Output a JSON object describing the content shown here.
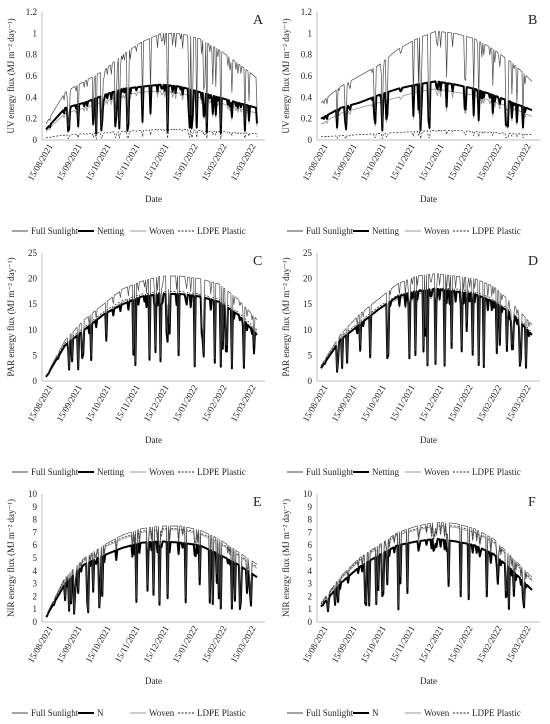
{
  "series_styles": [
    {
      "color": "#4a4a4a",
      "dash": "",
      "width": 0.7
    },
    {
      "color": "#000000",
      "dash": "",
      "width": 2.0
    },
    {
      "color": "#9a9a9a",
      "dash": "",
      "width": 0.9
    },
    {
      "color": "#222222",
      "dash": "2,1.5",
      "width": 0.7
    }
  ],
  "chart_data": [
    {
      "panel": "A",
      "type": "line",
      "ylabel": "UV energy flux (MJ m⁻² day⁻¹)",
      "xlabel": "Date",
      "x_ticks": [
        "15/08/2021",
        "15/09/2021",
        "15/10/2021",
        "15/11/2021",
        "15/12/2021",
        "15/01/2022",
        "15/02/2022",
        "15/03/2022"
      ],
      "ylim": [
        0,
        1.2
      ],
      "y_ticks": [
        "0",
        "0.2",
        "0.4",
        "0.6",
        "0.8",
        "1",
        "1.2"
      ],
      "legend": [
        "Full Sunlight",
        "Netting",
        "Woven",
        "LDPE Plastic"
      ],
      "series": [
        {
          "name": "Full Sunlight",
          "values": [
            0.15,
            0.45,
            0.55,
            0.65,
            0.8,
            0.92,
            1.0,
            1.0,
            0.95,
            0.85,
            0.72,
            0.58
          ]
        },
        {
          "name": "Netting",
          "values": [
            0.1,
            0.3,
            0.35,
            0.42,
            0.48,
            0.5,
            0.52,
            0.5,
            0.45,
            0.4,
            0.35,
            0.3
          ]
        },
        {
          "name": "Woven",
          "values": [
            0.08,
            0.25,
            0.3,
            0.36,
            0.42,
            0.45,
            0.46,
            0.44,
            0.4,
            0.35,
            0.3,
            0.25
          ]
        },
        {
          "name": "LDPE Plastic",
          "values": [
            0.02,
            0.05,
            0.06,
            0.07,
            0.08,
            0.09,
            0.1,
            0.1,
            0.09,
            0.08,
            0.07,
            0.06
          ]
        }
      ]
    },
    {
      "panel": "B",
      "type": "line",
      "ylabel": "UV energy flux (MJ m⁻² day⁻¹)",
      "xlabel": "Date",
      "x_ticks": [
        "15/08/2021",
        "15/09/2021",
        "15/10/2021",
        "15/11/2021",
        "15/12/2021",
        "15/01/2022",
        "15/02/2022",
        "15/03/2022"
      ],
      "ylim": [
        0,
        1.2
      ],
      "y_ticks": [
        "0",
        "0.2",
        "0.4",
        "0.6",
        "0.8",
        "1",
        "1.2"
      ],
      "legend": [
        "Full Sunlight",
        "Netting",
        "Woven",
        "LDPE Plastic"
      ],
      "series": [
        {
          "name": "Full Sunlight",
          "values": [
            0.35,
            0.5,
            0.6,
            0.7,
            0.85,
            0.95,
            1.02,
            1.0,
            0.95,
            0.85,
            0.72,
            0.55
          ]
        },
        {
          "name": "Netting",
          "values": [
            0.2,
            0.3,
            0.35,
            0.42,
            0.48,
            0.52,
            0.55,
            0.52,
            0.48,
            0.42,
            0.35,
            0.28
          ]
        },
        {
          "name": "Woven",
          "values": [
            0.15,
            0.25,
            0.3,
            0.35,
            0.4,
            0.45,
            0.48,
            0.45,
            0.42,
            0.36,
            0.3,
            0.22
          ]
        },
        {
          "name": "LDPE Plastic",
          "values": [
            0.03,
            0.04,
            0.05,
            0.06,
            0.07,
            0.08,
            0.09,
            0.09,
            0.08,
            0.07,
            0.06,
            0.05
          ]
        }
      ]
    },
    {
      "panel": "C",
      "type": "line",
      "ylabel": "PAR energy flux (MJ m⁻² day⁻¹)",
      "xlabel": "Date",
      "x_ticks": [
        "15/08/2021",
        "15/09/2021",
        "15/10/2021",
        "15/11/2021",
        "15/12/2021",
        "15/01/2022",
        "15/02/2022",
        "15/03/2022"
      ],
      "ylim": [
        0,
        25
      ],
      "y_ticks": [
        "0",
        "5",
        "10",
        "15",
        "20",
        "25"
      ],
      "legend": [
        "Full Sunlight",
        "Netting",
        "Woven",
        "LDPE Plastic"
      ],
      "series": [
        {
          "name": "Full Sunlight",
          "values": [
            1,
            8,
            12,
            15,
            18,
            19.5,
            20.5,
            20.5,
            20,
            19,
            16,
            12
          ]
        },
        {
          "name": "Netting",
          "values": [
            0.8,
            7,
            10,
            13,
            15,
            16.5,
            17,
            17,
            16.5,
            15.5,
            13,
            9
          ]
        },
        {
          "name": "Woven",
          "values": [
            0.8,
            7,
            10,
            13,
            15.5,
            16.5,
            17.2,
            17,
            16.8,
            15.5,
            13,
            9.5
          ]
        },
        {
          "name": "LDPE Plastic",
          "values": [
            0.9,
            7.5,
            10.5,
            13.5,
            15.8,
            17,
            17.5,
            17.5,
            17,
            16,
            13.5,
            10
          ]
        }
      ]
    },
    {
      "panel": "D",
      "type": "line",
      "ylabel": "PAR energy flux (MJ m⁻² day⁻¹)",
      "xlabel": "Date",
      "x_ticks": [
        "15/08/2021",
        "15/09/2021",
        "15/10/2021",
        "15/11/2021",
        "15/12/2021",
        "15/01/2022",
        "15/02/2022",
        "15/03/2022"
      ],
      "ylim": [
        0,
        25
      ],
      "y_ticks": [
        "0",
        "5",
        "10",
        "15",
        "20",
        "25"
      ],
      "legend": [
        "Full Sunlight",
        "Netting",
        "Woven",
        "LDPE Plastic"
      ],
      "series": [
        {
          "name": "Full Sunlight",
          "values": [
            3,
            9,
            13,
            16,
            19,
            20.5,
            21,
            20.5,
            20,
            18.5,
            15,
            11
          ]
        },
        {
          "name": "Netting",
          "values": [
            2.5,
            8,
            11,
            14,
            16.5,
            17.5,
            18,
            17.5,
            17,
            15.5,
            13,
            9
          ]
        },
        {
          "name": "Woven",
          "values": [
            2.5,
            8,
            11,
            14,
            16,
            17,
            17.5,
            17.5,
            17,
            15.5,
            13,
            9
          ]
        },
        {
          "name": "LDPE Plastic",
          "values": [
            2.8,
            8.5,
            11.5,
            14.5,
            16.8,
            17.8,
            18.2,
            18,
            17.5,
            16,
            13.5,
            9.5
          ]
        }
      ]
    },
    {
      "panel": "E",
      "type": "line",
      "ylabel": "NIR energy flux (MJ m⁻² day⁻¹)",
      "xlabel": "Date",
      "x_ticks": [
        "15/08/2021",
        "15/09/2021",
        "15/10/2021",
        "15/11/2021",
        "15/12/2021",
        "15/01/2022",
        "15/02/2022",
        "15/03/2022"
      ],
      "ylim": [
        0,
        10
      ],
      "y_ticks": [
        "0",
        "1",
        "2",
        "3",
        "4",
        "5",
        "6",
        "7",
        "8",
        "9",
        "10"
      ],
      "legend": [
        "Full Sunlight",
        "N",
        "Woven",
        "LDPE Plastic"
      ],
      "series": [
        {
          "name": "Full Sunlight",
          "values": [
            0.5,
            3.5,
            5,
            6,
            6.8,
            7.3,
            7.5,
            7.5,
            7.2,
            6.5,
            5.5,
            4.5
          ]
        },
        {
          "name": "N",
          "values": [
            0.4,
            3,
            4.5,
            5.2,
            5.8,
            6.2,
            6.3,
            6.2,
            6,
            5.3,
            4.5,
            3.5
          ]
        },
        {
          "name": "Woven",
          "values": [
            0.5,
            3.3,
            4.8,
            5.8,
            6.5,
            7,
            7.2,
            7.2,
            6.9,
            6.2,
            5.2,
            4.2
          ]
        },
        {
          "name": "LDPE Plastic",
          "values": [
            0.5,
            3.4,
            4.9,
            5.9,
            6.6,
            7.1,
            7.3,
            7.3,
            7,
            6.3,
            5.3,
            4.3
          ]
        }
      ]
    },
    {
      "panel": "F",
      "type": "line",
      "ylabel": "NIR energy flux (MJ m⁻² day⁻¹)",
      "xlabel": "Date",
      "x_ticks": [
        "15/08/2021",
        "15/09/2021",
        "15/10/2021",
        "15/11/2021",
        "15/12/2021",
        "15/01/2022",
        "15/02/2022",
        "15/03/2022"
      ],
      "ylim": [
        0,
        10
      ],
      "y_ticks": [
        "0",
        "1",
        "2",
        "3",
        "4",
        "5",
        "6",
        "7",
        "8",
        "9",
        "10"
      ],
      "legend": [
        "Full Sunlight",
        "N",
        "Woven",
        "LDPE Plastic"
      ],
      "series": [
        {
          "name": "Full Sunlight",
          "values": [
            1.5,
            3.5,
            5,
            6,
            7,
            7.5,
            7.8,
            7.7,
            7.3,
            6.5,
            5,
            3.5
          ]
        },
        {
          "name": "N",
          "values": [
            1.2,
            3,
            4.3,
            5.2,
            6,
            6.3,
            6.5,
            6.3,
            6,
            5.3,
            4,
            2.5
          ]
        },
        {
          "name": "Woven",
          "values": [
            1.4,
            3.3,
            4.8,
            5.8,
            6.8,
            7.2,
            7.5,
            7.4,
            7,
            6.2,
            4.8,
            3.2
          ]
        },
        {
          "name": "LDPE Plastic",
          "values": [
            1.4,
            3.4,
            4.9,
            5.9,
            6.9,
            7.3,
            7.6,
            7.5,
            7.1,
            6.3,
            4.9,
            3.3
          ]
        }
      ]
    }
  ]
}
